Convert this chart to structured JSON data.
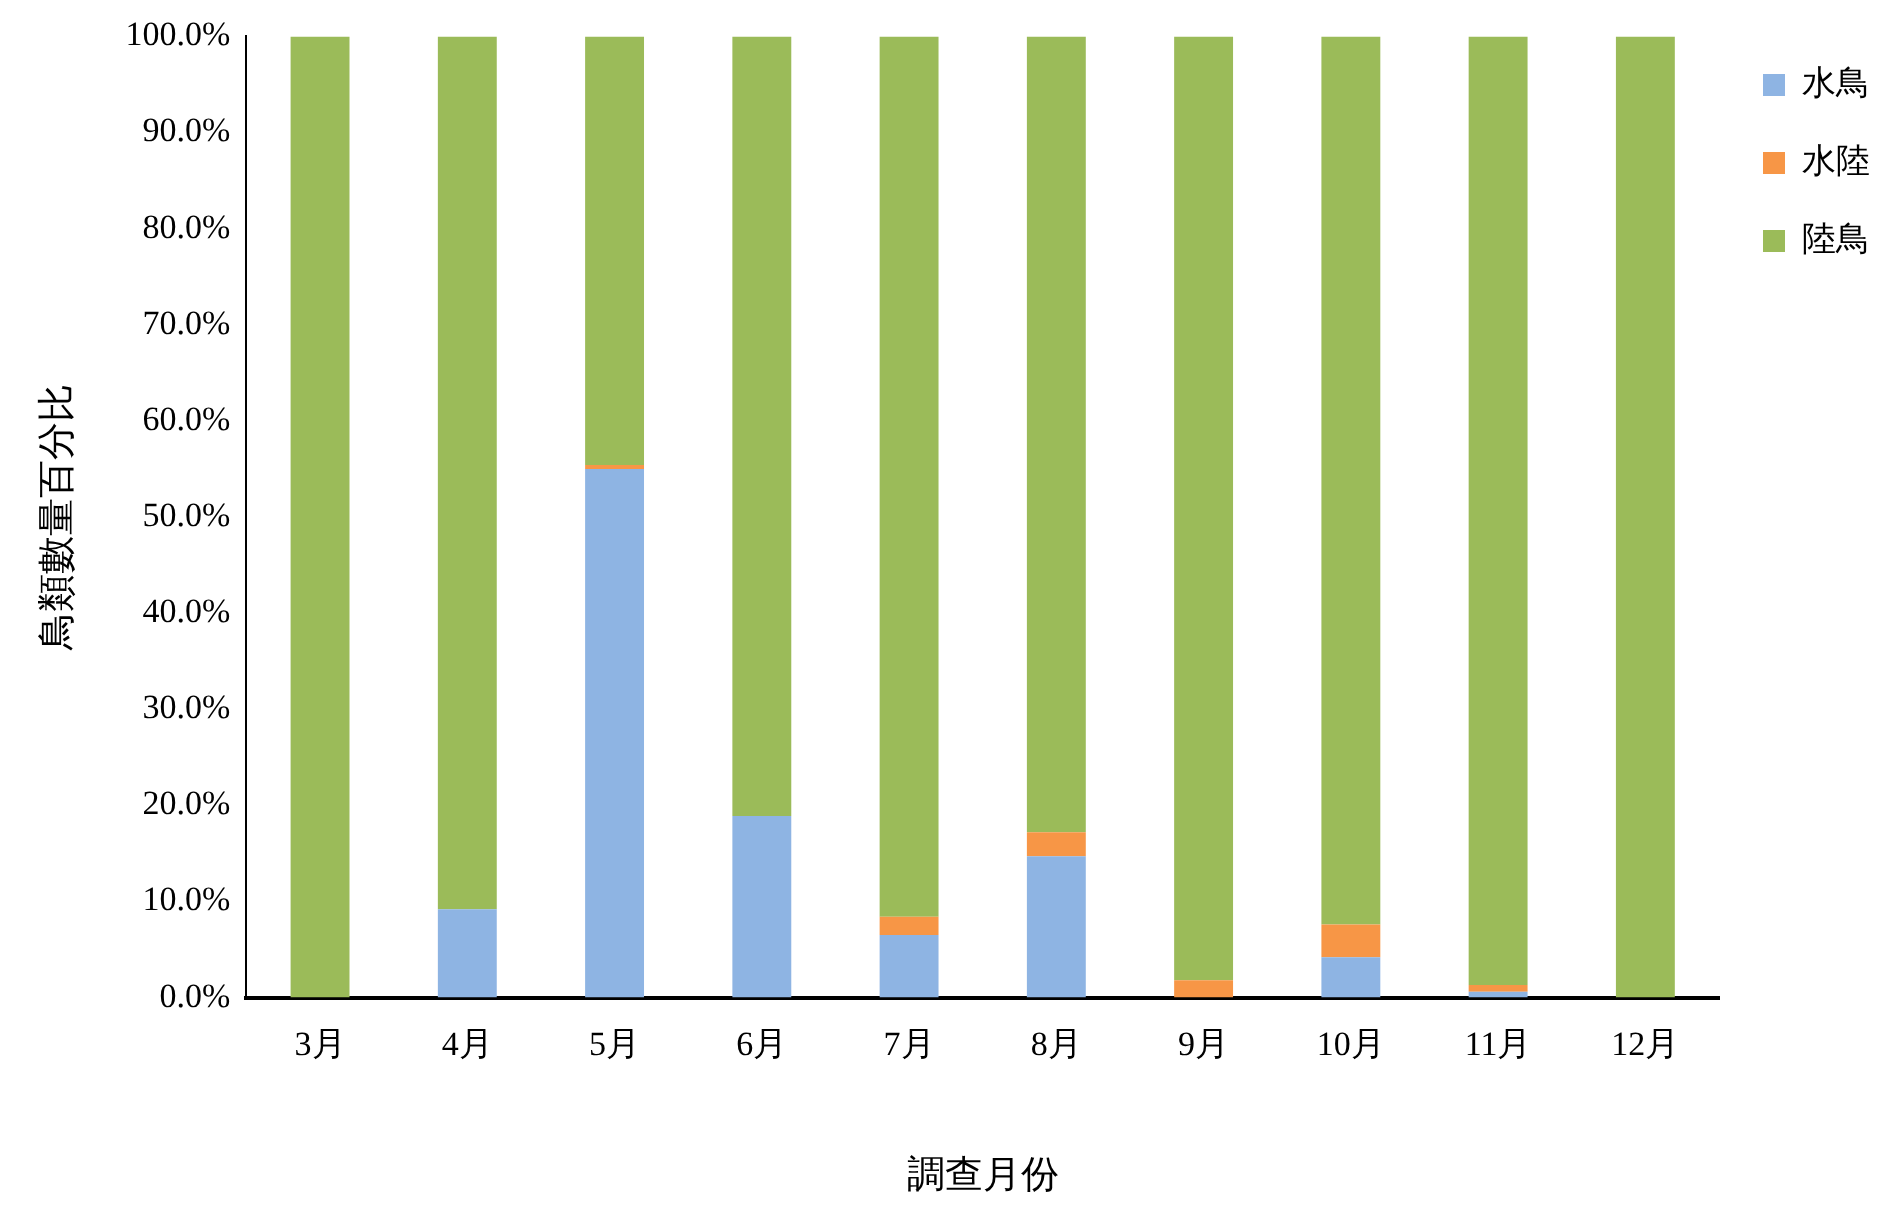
{
  "chart_data": {
    "type": "bar",
    "stacked": true,
    "xlabel": "調查月份",
    "ylabel": "鳥類數量百分比",
    "categories": [
      "3月",
      "4月",
      "5月",
      "6月",
      "7月",
      "8月",
      "9月",
      "10月",
      "11月",
      "12月"
    ],
    "series": [
      {
        "name": "水鳥",
        "color": "#8eb4e3",
        "values": [
          0,
          9.2,
          55.0,
          18.9,
          6.5,
          14.7,
          0,
          4.2,
          0.6,
          0
        ]
      },
      {
        "name": "水陸",
        "color": "#f79646",
        "values": [
          0,
          0,
          0.4,
          0,
          1.9,
          2.5,
          1.8,
          3.4,
          0.7,
          0
        ]
      },
      {
        "name": "陸鳥",
        "color": "#9bbb59",
        "values": [
          100,
          90.8,
          44.6,
          81.1,
          91.6,
          82.8,
          98.2,
          92.4,
          98.7,
          100
        ]
      }
    ],
    "ylim": [
      0,
      100
    ],
    "yticks": [
      {
        "value": 0,
        "label": "0.0%"
      },
      {
        "value": 10,
        "label": "10.0%"
      },
      {
        "value": 20,
        "label": "20.0%"
      },
      {
        "value": 30,
        "label": "30.0%"
      },
      {
        "value": 40,
        "label": "40.0%"
      },
      {
        "value": 50,
        "label": "50.0%"
      },
      {
        "value": 60,
        "label": "60.0%"
      },
      {
        "value": 70,
        "label": "70.0%"
      },
      {
        "value": 80,
        "label": "80.0%"
      },
      {
        "value": 90,
        "label": "90.0%"
      },
      {
        "value": 100,
        "label": "100.0%"
      }
    ],
    "grid": false,
    "legend": "top right"
  }
}
